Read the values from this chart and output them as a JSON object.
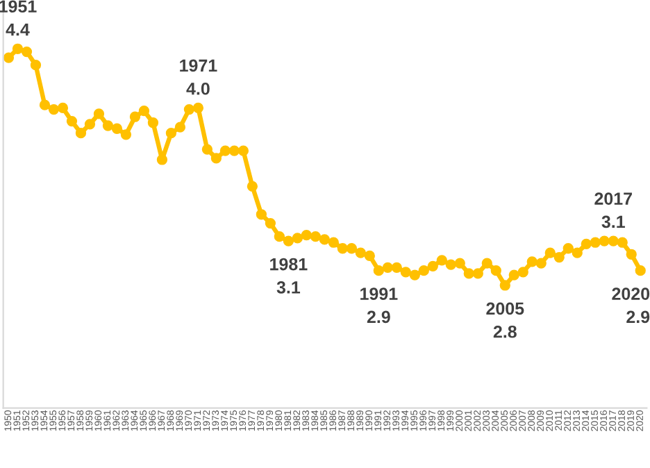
{
  "chart_data": {
    "type": "line",
    "categories": [
      "1950",
      "1951",
      "1952",
      "1953",
      "1954",
      "1955",
      "1956",
      "1957",
      "1958",
      "1959",
      "1960",
      "1961",
      "1962",
      "1963",
      "1964",
      "1965",
      "1966",
      "1967",
      "1968",
      "1969",
      "1970",
      "1971",
      "1972",
      "1973",
      "1974",
      "1975",
      "1976",
      "1977",
      "1978",
      "1979",
      "1980",
      "1981",
      "1982",
      "1983",
      "1984",
      "1985",
      "1986",
      "1987",
      "1988",
      "1989",
      "1990",
      "1991",
      "1992",
      "1993",
      "1994",
      "1995",
      "1996",
      "1997",
      "1998",
      "1999",
      "2000",
      "2001",
      "2002",
      "2003",
      "2004",
      "2005",
      "2006",
      "2007",
      "2008",
      "2009",
      "2010",
      "2011",
      "2012",
      "2013",
      "2014",
      "2015",
      "2016",
      "2017",
      "2018",
      "2019",
      "2020"
    ],
    "series": [
      {
        "color": "#ffc000",
        "values": [
          4.34,
          4.4,
          4.38,
          4.29,
          4.02,
          3.99,
          4.0,
          3.91,
          3.83,
          3.89,
          3.96,
          3.88,
          3.86,
          3.82,
          3.94,
          3.98,
          3.9,
          3.65,
          3.83,
          3.87,
          3.99,
          4.0,
          3.72,
          3.66,
          3.71,
          3.71,
          3.71,
          3.47,
          3.28,
          3.22,
          3.13,
          3.1,
          3.12,
          3.14,
          3.13,
          3.11,
          3.09,
          3.05,
          3.05,
          3.02,
          3.0,
          2.9,
          2.92,
          2.92,
          2.89,
          2.87,
          2.9,
          2.93,
          2.97,
          2.94,
          2.95,
          2.88,
          2.88,
          2.95,
          2.9,
          2.8,
          2.87,
          2.89,
          2.96,
          2.95,
          3.02,
          2.99,
          3.05,
          3.02,
          3.08,
          3.09,
          3.1,
          3.1,
          3.09,
          3.01,
          2.9
        ],
        "value_labels": [
          null,
          "4.4",
          null,
          null,
          null,
          null,
          null,
          null,
          null,
          null,
          null,
          null,
          null,
          null,
          null,
          null,
          null,
          null,
          null,
          null,
          null,
          "4.0",
          null,
          null,
          null,
          null,
          null,
          null,
          null,
          null,
          null,
          "3.1",
          null,
          null,
          null,
          null,
          null,
          null,
          null,
          null,
          null,
          "2.9",
          null,
          null,
          null,
          null,
          null,
          null,
          null,
          null,
          null,
          null,
          null,
          null,
          null,
          "2.8",
          null,
          null,
          null,
          null,
          null,
          null,
          null,
          null,
          null,
          null,
          null,
          "3.1",
          null,
          null,
          "2.9"
        ]
      }
    ],
    "annotations": [
      {
        "text": "1951",
        "x": "1951",
        "y": 4.4
      },
      {
        "text": "1971",
        "x": "1971",
        "y": 4.0
      },
      {
        "text": "1981",
        "x": "1981",
        "y": 3.1
      },
      {
        "text": "1991",
        "x": "1991",
        "y": 2.9
      },
      {
        "text": "2005",
        "x": "2005",
        "y": 2.8
      },
      {
        "text": "2017",
        "x": "2017",
        "y": 3.1
      },
      {
        "text": "2020",
        "x": "2020",
        "y": 2.9
      }
    ],
    "ylim": [
      1.97,
      4.73
    ],
    "tick_labels": "x",
    "marker": "circle",
    "line_style": "solid",
    "grid": false,
    "legend": false
  }
}
